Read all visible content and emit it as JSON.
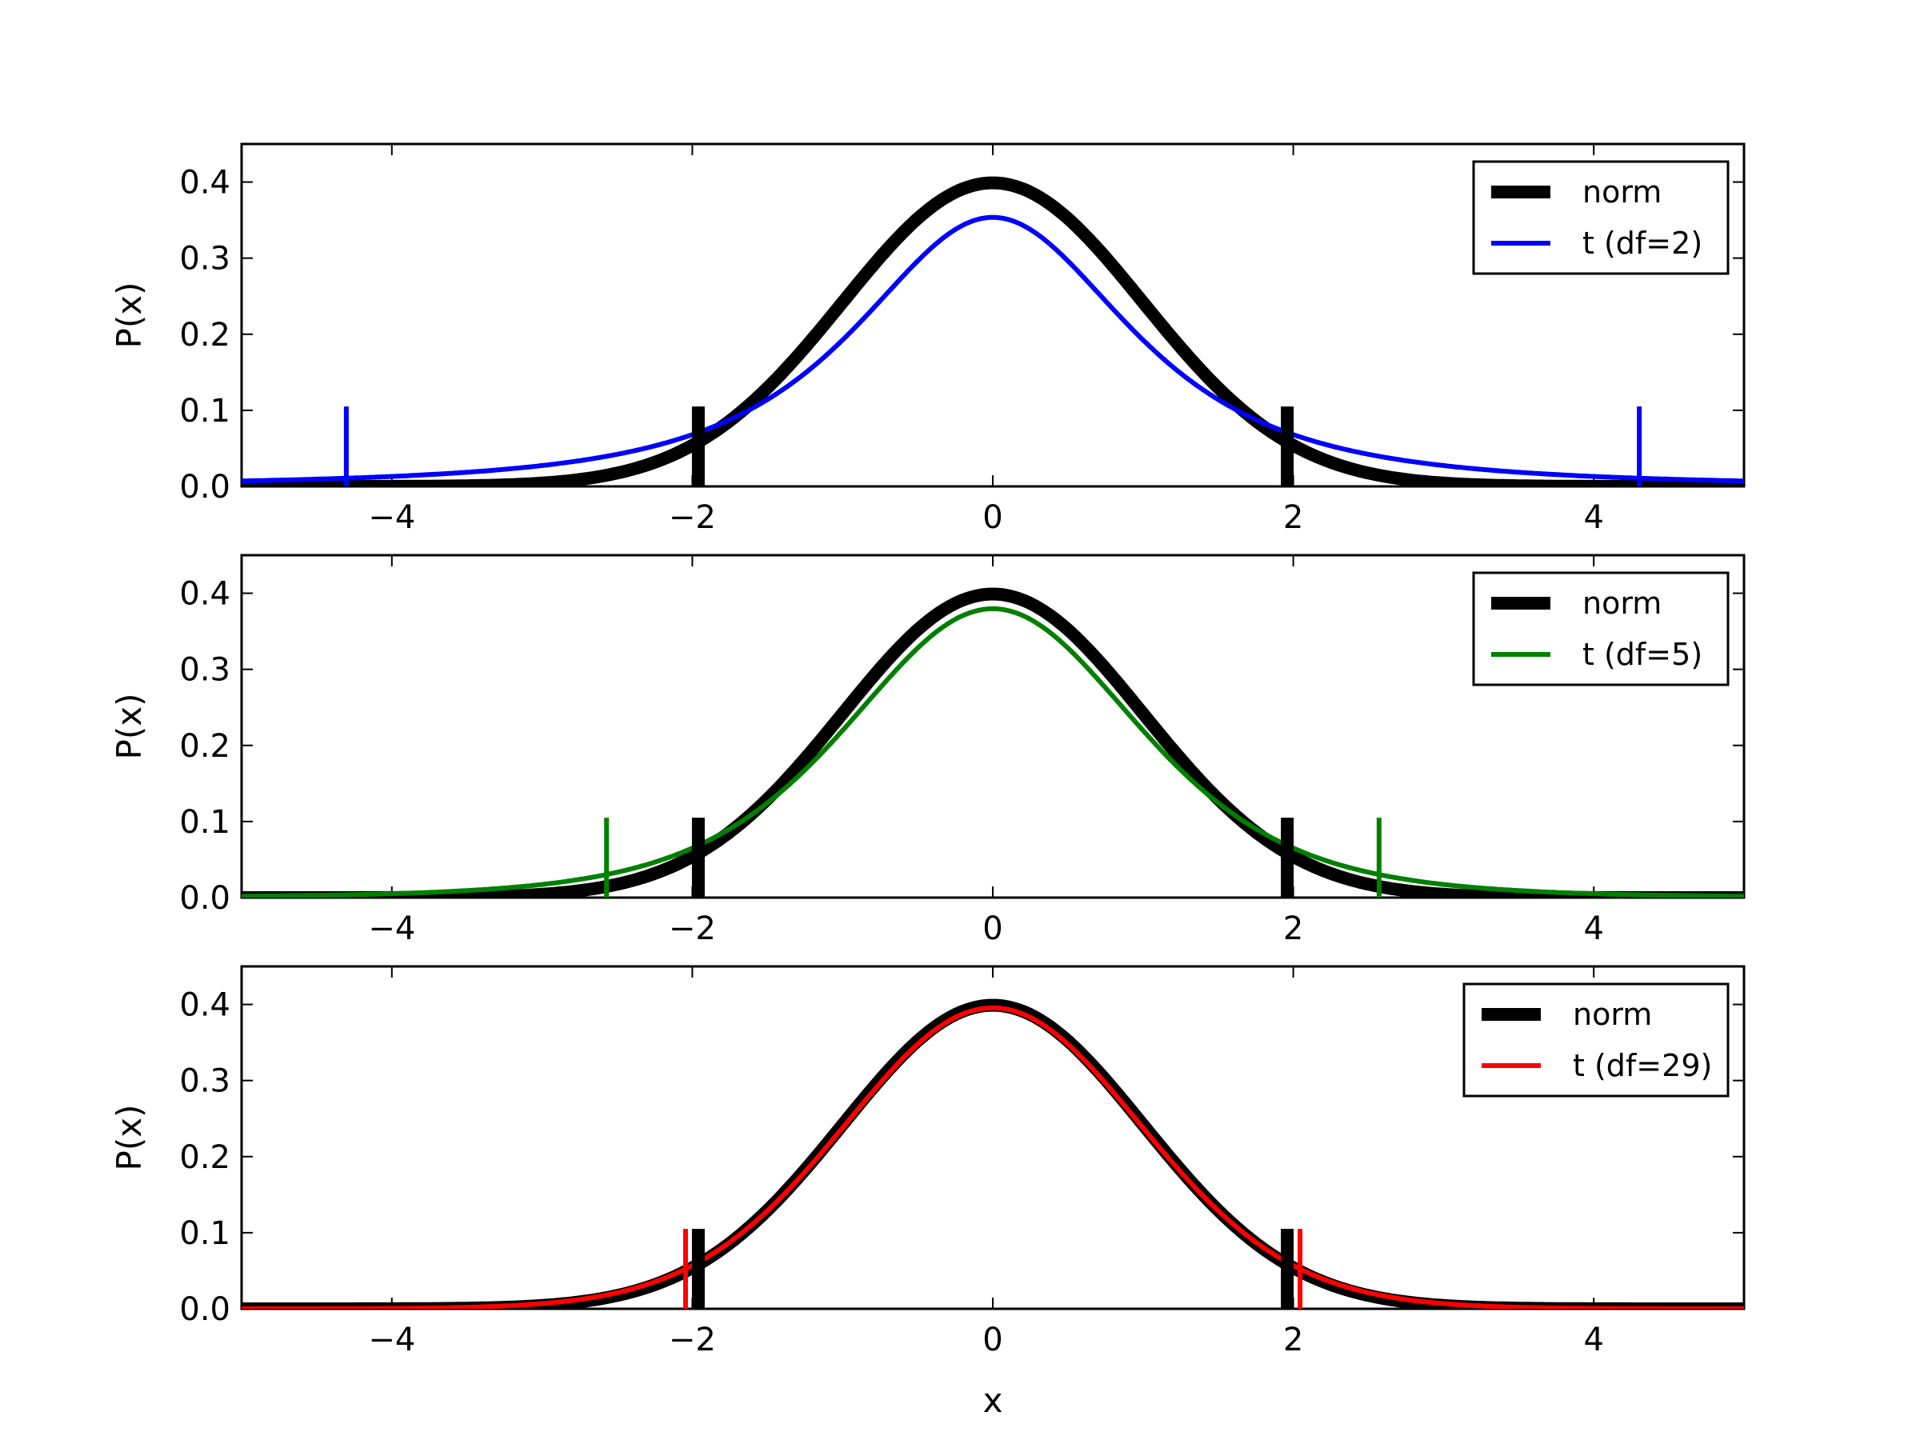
{
  "chart_data": [
    {
      "type": "line",
      "ylabel": "P(x)",
      "xlabel": "",
      "xlim": [
        -5,
        5
      ],
      "ylim": [
        0,
        0.45
      ],
      "xticks": [
        -4,
        -2,
        0,
        2,
        4
      ],
      "xtick_labels": [
        "−4",
        "−2",
        "0",
        "2",
        "4"
      ],
      "yticks": [
        0,
        0.1,
        0.2,
        0.3,
        0.4
      ],
      "ytick_labels": [
        "0.0",
        "0.1",
        "0.2",
        "0.3",
        "0.4"
      ],
      "legend_position": "top-right",
      "series": [
        {
          "name": "norm",
          "dist": "normal",
          "color": "#000000",
          "weight": "thick"
        },
        {
          "name": "t (df=2)",
          "dist": "t",
          "df": 2,
          "color": "#0000ff",
          "weight": "normal"
        }
      ],
      "critical_markers": [
        {
          "series": "norm",
          "x": [
            -1.96,
            1.96
          ],
          "height": 0.105
        },
        {
          "series": "t (df=2)",
          "x": [
            -4.303,
            4.303
          ],
          "height": 0.105
        }
      ]
    },
    {
      "type": "line",
      "ylabel": "P(x)",
      "xlabel": "",
      "xlim": [
        -5,
        5
      ],
      "ylim": [
        0,
        0.45
      ],
      "xticks": [
        -4,
        -2,
        0,
        2,
        4
      ],
      "xtick_labels": [
        "−4",
        "−2",
        "0",
        "2",
        "4"
      ],
      "yticks": [
        0,
        0.1,
        0.2,
        0.3,
        0.4
      ],
      "ytick_labels": [
        "0.0",
        "0.1",
        "0.2",
        "0.3",
        "0.4"
      ],
      "legend_position": "top-right",
      "series": [
        {
          "name": "norm",
          "dist": "normal",
          "color": "#000000",
          "weight": "thick"
        },
        {
          "name": "t (df=5)",
          "dist": "t",
          "df": 5,
          "color": "#008000",
          "weight": "normal"
        }
      ],
      "critical_markers": [
        {
          "series": "norm",
          "x": [
            -1.96,
            1.96
          ],
          "height": 0.105
        },
        {
          "series": "t (df=5)",
          "x": [
            -2.571,
            2.571
          ],
          "height": 0.105
        }
      ]
    },
    {
      "type": "line",
      "ylabel": "P(x)",
      "xlabel": "x",
      "xlim": [
        -5,
        5
      ],
      "ylim": [
        0,
        0.45
      ],
      "xticks": [
        -4,
        -2,
        0,
        2,
        4
      ],
      "xtick_labels": [
        "−4",
        "−2",
        "0",
        "2",
        "4"
      ],
      "yticks": [
        0,
        0.1,
        0.2,
        0.3,
        0.4
      ],
      "ytick_labels": [
        "0.0",
        "0.1",
        "0.2",
        "0.3",
        "0.4"
      ],
      "legend_position": "top-right",
      "series": [
        {
          "name": "norm",
          "dist": "normal",
          "color": "#000000",
          "weight": "thick"
        },
        {
          "name": "t (df=29)",
          "dist": "t",
          "df": 29,
          "color": "#ff0000",
          "weight": "normal"
        }
      ],
      "critical_markers": [
        {
          "series": "norm",
          "x": [
            -1.96,
            1.96
          ],
          "height": 0.105
        },
        {
          "series": "t (df=29)",
          "x": [
            -2.045,
            2.045
          ],
          "height": 0.105
        }
      ]
    }
  ]
}
